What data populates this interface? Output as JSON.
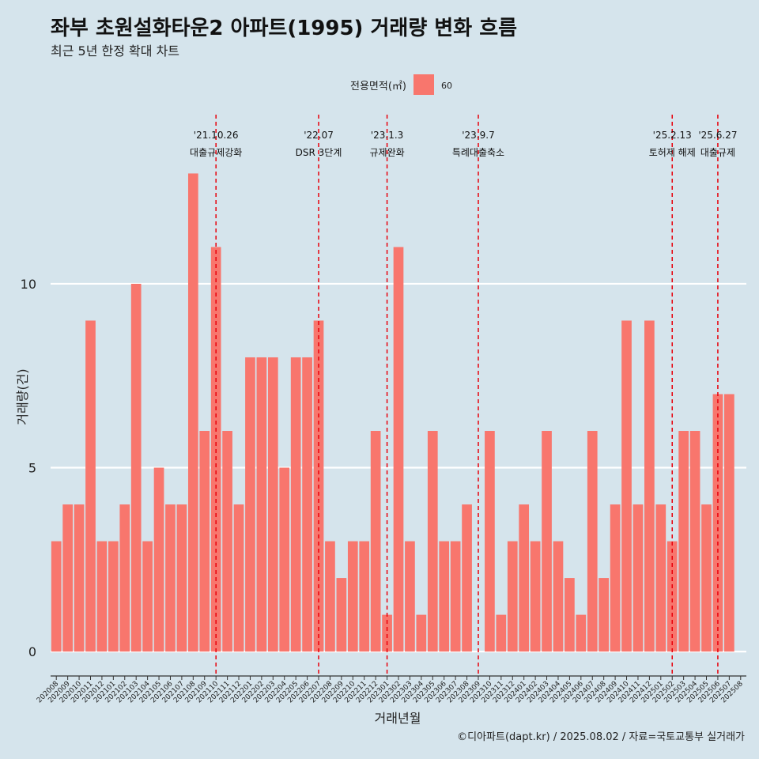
{
  "chart_data": {
    "type": "bar",
    "title": "좌부 초원설화타운2 아파트(1995) 거래량 변화 흐름",
    "subtitle": "최근 5년 한정 확대 차트",
    "xlabel": "거래년월",
    "ylabel": "거래량(건)",
    "ylim": [
      -0.6,
      14.6
    ],
    "yticks": [
      0,
      5,
      10
    ],
    "legend": {
      "title": "전용면적(㎡)",
      "entries": [
        {
          "label": "60",
          "color": "#f8766d"
        }
      ],
      "position": "top"
    },
    "categories": [
      "202008",
      "202009",
      "202010",
      "202011",
      "202012",
      "202101",
      "202102",
      "202103",
      "202104",
      "202105",
      "202106",
      "202107",
      "202108",
      "202109",
      "202110",
      "202111",
      "202112",
      "202201",
      "202202",
      "202203",
      "202204",
      "202205",
      "202206",
      "202207",
      "202208",
      "202209",
      "202210",
      "202211",
      "202212",
      "202301",
      "202302",
      "202303",
      "202304",
      "202305",
      "202306",
      "202307",
      "202308",
      "202309",
      "202310",
      "202311",
      "202312",
      "202401",
      "202402",
      "202403",
      "202404",
      "202405",
      "202406",
      "202407",
      "202408",
      "202409",
      "202410",
      "202411",
      "202412",
      "202501",
      "202502",
      "202503",
      "202504",
      "202505",
      "202506",
      "202507",
      "202508"
    ],
    "series": [
      {
        "name": "60",
        "color": "#f8766d",
        "values": [
          3,
          4,
          4,
          9,
          3,
          3,
          4,
          10,
          3,
          5,
          4,
          4,
          13,
          6,
          11,
          6,
          4,
          8,
          8,
          8,
          5,
          8,
          8,
          9,
          3,
          2,
          3,
          3,
          6,
          1,
          11,
          3,
          1,
          6,
          3,
          3,
          4,
          null,
          6,
          1,
          3,
          4,
          3,
          6,
          3,
          2,
          1,
          6,
          2,
          4,
          9,
          4,
          9,
          4,
          3,
          6,
          6,
          4,
          7,
          7,
          null
        ]
      }
    ],
    "events": [
      {
        "date": "'21.10.26",
        "label": "대출규제강화",
        "category": "202110"
      },
      {
        "date": "'22.07",
        "label": "DSR 3단계",
        "category": "202207"
      },
      {
        "date": "'23.1.3",
        "label": "규제완화",
        "category": "202301"
      },
      {
        "date": "'23.9.7",
        "label": "특례대출축소",
        "category": "202309"
      },
      {
        "date": "'25.2.13",
        "label": "토허제 해제",
        "category": "202502"
      },
      {
        "date": "'25.6.27",
        "label": "대출규제",
        "category": "202506"
      }
    ],
    "grid": true,
    "caption": "©디아파트(dapt.kr) / 2025.08.02 / 자료=국토교통부 실거래가"
  }
}
